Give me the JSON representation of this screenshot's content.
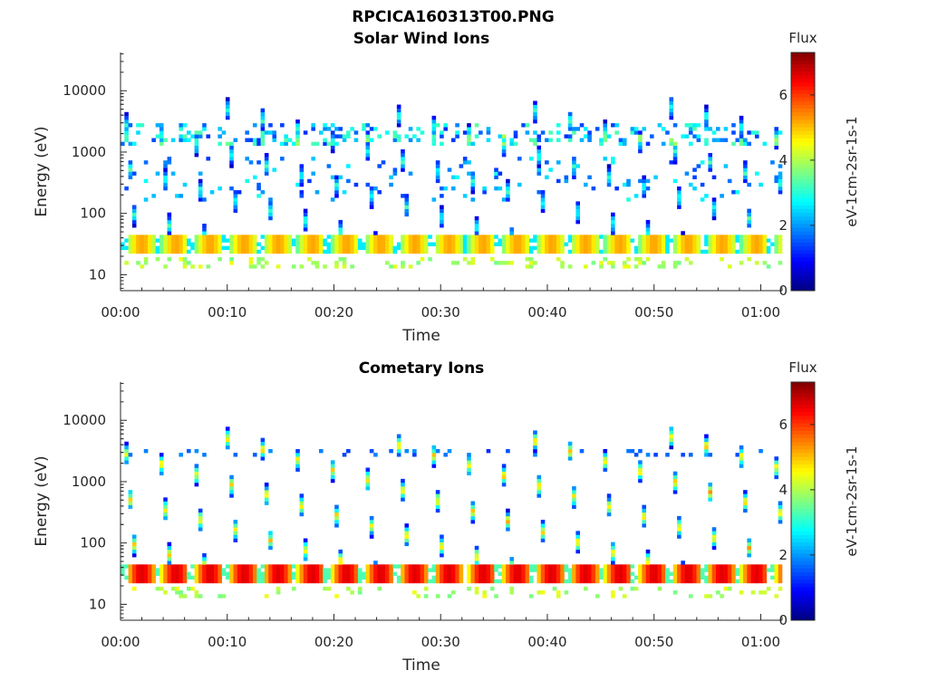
{
  "figure_title": "RPCICA160313T00.PNG",
  "colors": {
    "axis": "#262626",
    "background": "#ffffff",
    "colormap": "jet"
  },
  "chart_data": [
    {
      "type": "heatmap",
      "title": "Solar Wind Ions",
      "xlabel": "Time",
      "ylabel": "Energy (eV)",
      "x_ticks": [
        "00:00",
        "00:10",
        "00:20",
        "00:30",
        "00:40",
        "00:50",
        "01:00"
      ],
      "x_tick_minutes": [
        0,
        10,
        20,
        30,
        40,
        50,
        60
      ],
      "xlim_minutes": [
        0,
        62
      ],
      "y_scale": "log",
      "y_ticks": [
        "10",
        "100",
        "1000",
        "10000"
      ],
      "y_tick_values": [
        10,
        100,
        1000,
        10000
      ],
      "ylim": [
        5.5,
        42000
      ],
      "colorbar": {
        "title": "Flux",
        "label": "eV-1cm-2sr-1s-1",
        "ticks": [
          "0",
          "2",
          "4",
          "6"
        ],
        "tick_values": [
          0,
          2,
          4,
          6
        ],
        "range": [
          0,
          7.3
        ]
      },
      "pattern": {
        "sweep_period_minutes": 3.2,
        "sweep_count": 20,
        "energy_peak_band_eV": [
          22,
          42
        ],
        "peak_flux": 5.2,
        "high_energy_band_eV": [
          1200,
          3000
        ]
      }
    },
    {
      "type": "heatmap",
      "title": "Cometary Ions",
      "xlabel": "Time",
      "ylabel": "Energy (eV)",
      "x_ticks": [
        "00:00",
        "00:10",
        "00:20",
        "00:30",
        "00:40",
        "00:50",
        "01:00"
      ],
      "x_tick_minutes": [
        0,
        10,
        20,
        30,
        40,
        50,
        60
      ],
      "xlim_minutes": [
        0,
        62
      ],
      "y_scale": "log",
      "y_ticks": [
        "10",
        "100",
        "1000",
        "10000"
      ],
      "y_tick_values": [
        10,
        100,
        1000,
        10000
      ],
      "ylim": [
        5.5,
        42000
      ],
      "colorbar": {
        "title": "Flux",
        "label": "eV-1cm-2sr-1s-1",
        "ticks": [
          "0",
          "2",
          "4",
          "6"
        ],
        "tick_values": [
          0,
          2,
          4,
          6
        ],
        "range": [
          0,
          7.3
        ]
      },
      "pattern": {
        "sweep_period_minutes": 3.2,
        "sweep_count": 20,
        "energy_peak_band_eV": [
          22,
          42
        ],
        "peak_flux": 6.6,
        "high_energy_band_eV": [
          2500,
          3500
        ]
      }
    }
  ]
}
